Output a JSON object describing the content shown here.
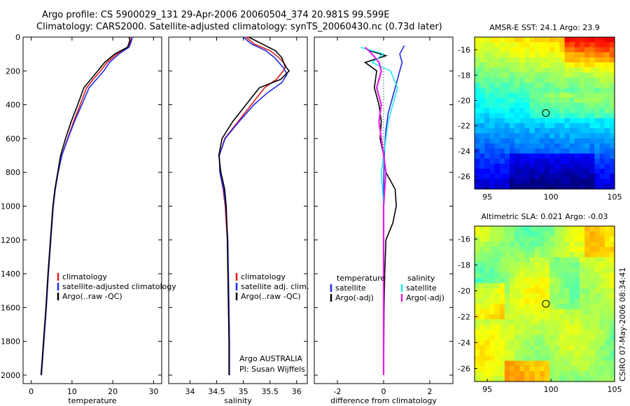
{
  "header": {
    "line1": "Argo profile: CS 5900029_131 29-Apr-2006 20060504_374 20.981S 99.599E",
    "line2": "Climatology: CARS2000. Satellite-adjusted climatology: synTS_20060430.nc (0.73d later)"
  },
  "footer": {
    "agency": "Argo AUSTRALIA",
    "pi": "PI: Susan Wijffels",
    "stamp": "CSIRO 07-May-2006 08:34:41"
  },
  "colors": {
    "climatology": "#e41a1c",
    "satellite": "#1f2be6",
    "argo": "#000000",
    "salinity_satellite": "#22e6ee",
    "salinity_argo": "#e020e0"
  },
  "chart_data": [
    {
      "type": "line",
      "panel": "temperature",
      "xlabel": "temperature",
      "ylabel": "",
      "xlim": [
        -2,
        32
      ],
      "ylim": [
        2050,
        0
      ],
      "xticks": [
        0,
        10,
        20,
        30
      ],
      "yticks": [
        0,
        200,
        400,
        600,
        800,
        1000,
        1200,
        1400,
        1600,
        1800,
        2000
      ],
      "legend": [
        "climatology",
        "satellite-adjusted climatology",
        "Argo(..raw -QC)"
      ],
      "series": [
        {
          "name": "climatology",
          "color": "#e41a1c",
          "width": 1.6,
          "points": [
            [
              24.6,
              0
            ],
            [
              24.3,
              30
            ],
            [
              23.8,
              60
            ],
            [
              21.0,
              100
            ],
            [
              18.6,
              150
            ],
            [
              17.0,
              200
            ],
            [
              15.2,
              250
            ],
            [
              13.6,
              300
            ],
            [
              12.0,
              400
            ],
            [
              10.4,
              500
            ],
            [
              8.9,
              600
            ],
            [
              7.5,
              700
            ],
            [
              6.6,
              800
            ],
            [
              5.9,
              900
            ],
            [
              5.4,
              1000
            ],
            [
              4.8,
              1200
            ],
            [
              4.2,
              1400
            ],
            [
              3.7,
              1600
            ],
            [
              3.1,
              1800
            ],
            [
              2.5,
              2000
            ]
          ]
        },
        {
          "name": "satellite-adjusted climatology",
          "color": "#1f2be6",
          "width": 1.6,
          "points": [
            [
              24.8,
              0
            ],
            [
              24.5,
              30
            ],
            [
              24.0,
              60
            ],
            [
              21.5,
              100
            ],
            [
              19.2,
              150
            ],
            [
              17.8,
              200
            ],
            [
              16.0,
              250
            ],
            [
              14.2,
              300
            ],
            [
              12.4,
              400
            ],
            [
              10.6,
              500
            ],
            [
              9.0,
              600
            ],
            [
              7.5,
              700
            ],
            [
              6.6,
              800
            ],
            [
              5.9,
              900
            ],
            [
              5.4,
              1000
            ],
            [
              4.8,
              1200
            ],
            [
              4.2,
              1400
            ],
            [
              3.7,
              1600
            ],
            [
              3.1,
              1800
            ],
            [
              2.5,
              2000
            ]
          ]
        },
        {
          "name": "Argo(..raw -QC)",
          "color": "#000000",
          "width": 1.6,
          "points": [
            [
              24.0,
              0
            ],
            [
              24.2,
              20
            ],
            [
              23.6,
              60
            ],
            [
              20.5,
              100
            ],
            [
              18.0,
              150
            ],
            [
              16.3,
              200
            ],
            [
              14.6,
              250
            ],
            [
              12.9,
              300
            ],
            [
              11.4,
              400
            ],
            [
              9.8,
              500
            ],
            [
              8.4,
              600
            ],
            [
              7.2,
              700
            ],
            [
              6.5,
              800
            ],
            [
              5.8,
              900
            ],
            [
              5.3,
              1000
            ],
            [
              4.7,
              1200
            ],
            [
              4.1,
              1400
            ],
            [
              3.6,
              1600
            ],
            [
              3.0,
              1800
            ],
            [
              2.4,
              2000
            ]
          ]
        }
      ]
    },
    {
      "type": "line",
      "panel": "salinity",
      "xlabel": "salinity",
      "ylabel": "",
      "xlim": [
        33.6,
        36.2
      ],
      "ylim": [
        2050,
        0
      ],
      "xticks": [
        34,
        34.5,
        35,
        35.5,
        36
      ],
      "legend": [
        "climatology",
        "satellite adj. clim.",
        "Argo(..raw -QC)"
      ],
      "series": [
        {
          "name": "climatology",
          "color": "#e41a1c",
          "width": 1.6,
          "points": [
            [
              35.05,
              0
            ],
            [
              35.2,
              40
            ],
            [
              35.5,
              80
            ],
            [
              35.7,
              130
            ],
            [
              35.8,
              170
            ],
            [
              35.75,
              200
            ],
            [
              35.62,
              250
            ],
            [
              35.4,
              300
            ],
            [
              35.15,
              400
            ],
            [
              34.9,
              500
            ],
            [
              34.65,
              600
            ],
            [
              34.55,
              700
            ],
            [
              34.56,
              800
            ],
            [
              34.62,
              900
            ],
            [
              34.66,
              1000
            ],
            [
              34.7,
              1200
            ],
            [
              34.72,
              1400
            ],
            [
              34.73,
              1600
            ],
            [
              34.74,
              1800
            ],
            [
              34.74,
              2000
            ]
          ]
        },
        {
          "name": "satellite adj. clim.",
          "color": "#1f2be6",
          "width": 1.6,
          "points": [
            [
              35.0,
              0
            ],
            [
              35.15,
              40
            ],
            [
              35.42,
              80
            ],
            [
              35.58,
              120
            ],
            [
              35.75,
              180
            ],
            [
              35.82,
              220
            ],
            [
              35.72,
              270
            ],
            [
              35.45,
              330
            ],
            [
              35.2,
              400
            ],
            [
              34.92,
              500
            ],
            [
              34.66,
              600
            ],
            [
              34.55,
              700
            ],
            [
              34.56,
              800
            ],
            [
              34.63,
              900
            ],
            [
              34.67,
              1000
            ],
            [
              34.71,
              1200
            ],
            [
              34.72,
              1400
            ],
            [
              34.73,
              1600
            ],
            [
              34.74,
              1800
            ],
            [
              34.74,
              2000
            ]
          ]
        },
        {
          "name": "Argo(..raw -QC)",
          "color": "#000000",
          "width": 1.6,
          "points": [
            [
              35.1,
              0
            ],
            [
              35.35,
              40
            ],
            [
              35.6,
              80
            ],
            [
              35.72,
              120
            ],
            [
              35.78,
              170
            ],
            [
              35.86,
              200
            ],
            [
              35.7,
              250
            ],
            [
              35.3,
              300
            ],
            [
              35.05,
              400
            ],
            [
              34.8,
              500
            ],
            [
              34.6,
              600
            ],
            [
              34.54,
              700
            ],
            [
              34.58,
              800
            ],
            [
              34.65,
              900
            ],
            [
              34.68,
              1000
            ],
            [
              34.7,
              1200
            ],
            [
              34.71,
              1400
            ],
            [
              34.72,
              1600
            ],
            [
              34.73,
              1800
            ],
            [
              34.73,
              2000
            ]
          ]
        }
      ]
    },
    {
      "type": "line",
      "panel": "difference",
      "xlabel": "difference from climatology",
      "ylabel": "",
      "xlim": [
        -3,
        3
      ],
      "ylim": [
        2050,
        0
      ],
      "xticks": [
        -2,
        0,
        2
      ],
      "legend_left_title": "temperature",
      "legend_right_title": "salinity",
      "legend": [
        "satellite",
        "Argo(-adj)",
        "satellite",
        "Argo(-adj)"
      ],
      "series": [
        {
          "name": "temperature satellite",
          "color": "#1f2be6",
          "width": 1.6,
          "points": [
            [
              0.9,
              50
            ],
            [
              0.7,
              100
            ],
            [
              0.8,
              150
            ],
            [
              0.6,
              250
            ],
            [
              0.4,
              350
            ],
            [
              0.2,
              450
            ],
            [
              0.1,
              550
            ],
            [
              0.05,
              650
            ],
            [
              0.02,
              750
            ],
            [
              0.0,
              900
            ],
            [
              0.0,
              1200
            ],
            [
              0.0,
              2000
            ]
          ]
        },
        {
          "name": "temperature Argo(-adj)",
          "color": "#000000",
          "width": 1.6,
          "points": [
            [
              -0.6,
              80
            ],
            [
              0.1,
              110
            ],
            [
              -0.8,
              150
            ],
            [
              -0.3,
              200
            ],
            [
              -0.4,
              300
            ],
            [
              -0.2,
              400
            ],
            [
              -0.1,
              500
            ],
            [
              -0.15,
              600
            ],
            [
              0.0,
              700
            ],
            [
              0.1,
              800
            ],
            [
              0.3,
              850
            ],
            [
              0.5,
              900
            ],
            [
              0.55,
              1000
            ],
            [
              0.4,
              1100
            ],
            [
              0.1,
              1200
            ],
            [
              0.05,
              1400
            ],
            [
              0.02,
              1600
            ],
            [
              0.01,
              1800
            ],
            [
              0.0,
              2000
            ]
          ]
        },
        {
          "name": "salinity satellite",
          "color": "#22e6ee",
          "width": 1.6,
          "points": [
            [
              -1.0,
              60
            ],
            [
              0.0,
              100
            ],
            [
              -0.5,
              150
            ],
            [
              0.3,
              200
            ],
            [
              0.6,
              300
            ],
            [
              0.4,
              400
            ],
            [
              0.2,
              500
            ],
            [
              0.1,
              600
            ],
            [
              0.0,
              700
            ],
            [
              -0.1,
              800
            ],
            [
              0.0,
              1000
            ],
            [
              0.0,
              2000
            ]
          ]
        },
        {
          "name": "salinity Argo(-adj)",
          "color": "#e020e0",
          "width": 2.2,
          "points": [
            [
              -0.8,
              60
            ],
            [
              -0.5,
              100
            ],
            [
              -0.2,
              150
            ],
            [
              -0.1,
              200
            ],
            [
              -0.3,
              300
            ],
            [
              -0.1,
              400
            ],
            [
              -0.2,
              500
            ],
            [
              -0.1,
              600
            ],
            [
              0.0,
              700
            ],
            [
              0.1,
              800
            ],
            [
              0.05,
              900
            ],
            [
              0.0,
              1000
            ],
            [
              0.0,
              1200
            ],
            [
              0.0,
              2000
            ]
          ]
        }
      ]
    },
    {
      "type": "heatmap",
      "panel": "sst_map",
      "title": "AMSR-E SST: 24.1 Argo: 23.9",
      "xlim": [
        94,
        105
      ],
      "ylim": [
        -27,
        -15
      ],
      "xticks": [
        95,
        100,
        105
      ],
      "yticks": [
        -16,
        -18,
        -20,
        -22,
        -24,
        -26
      ],
      "marker": [
        99.6,
        -21.0
      ]
    },
    {
      "type": "heatmap",
      "panel": "sla_map",
      "title": "Altimetric SLA: 0.021 Argo: -0.03",
      "xlim": [
        94,
        105
      ],
      "ylim": [
        -27,
        -15
      ],
      "xticks": [
        95,
        100,
        105
      ],
      "yticks": [
        -16,
        -18,
        -20,
        -22,
        -24,
        -26
      ],
      "marker": [
        99.6,
        -21.0
      ]
    }
  ]
}
